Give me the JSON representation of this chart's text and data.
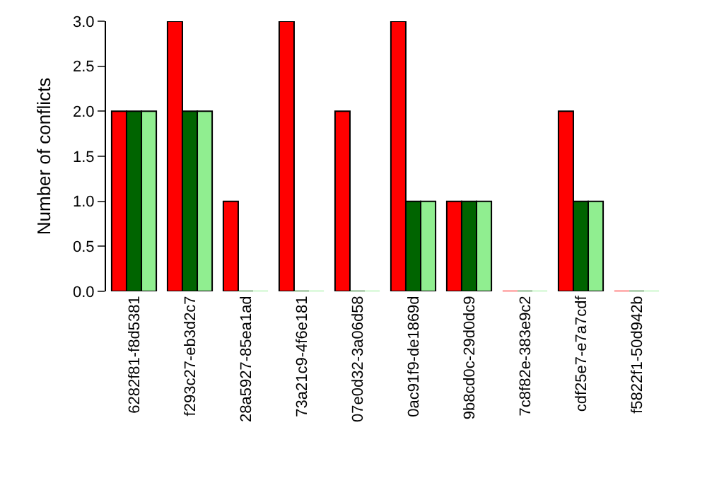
{
  "chart_data": {
    "type": "bar",
    "ylabel": "Number of conflicts",
    "categories": [
      "6282f81-f8d5381",
      "f293c27-eb3d2c7",
      "28a5927-85ea1ad",
      "73a21c9-4f6e181",
      "07e0d32-3a06d58",
      "0ac91f9-de1869d",
      "9b8cd0c-29d0dc9",
      "7c8f82e-383e9c2",
      "cdf25e7-e7a7cdf",
      "f5822f1-50d942b"
    ],
    "series": [
      {
        "color": "#ff0000",
        "values": [
          2,
          3,
          1,
          3,
          2,
          3,
          1,
          0,
          2,
          0
        ]
      },
      {
        "color": "#006400",
        "values": [
          2,
          2,
          0,
          0,
          0,
          1,
          1,
          0,
          1,
          0
        ]
      },
      {
        "color": "#90ee90",
        "values": [
          2,
          2,
          0,
          0,
          0,
          1,
          1,
          0,
          1,
          0
        ]
      }
    ],
    "ylim": [
      0,
      3
    ],
    "yticks": [
      {
        "value": 0,
        "label": "0.0"
      },
      {
        "value": 0.5,
        "label": "0.5"
      },
      {
        "value": 1,
        "label": "1.0"
      },
      {
        "value": 1.5,
        "label": "1.5"
      },
      {
        "value": 2,
        "label": "2.0"
      },
      {
        "value": 2.5,
        "label": "2.5"
      },
      {
        "value": 3,
        "label": "3.0"
      }
    ],
    "grid": false
  }
}
